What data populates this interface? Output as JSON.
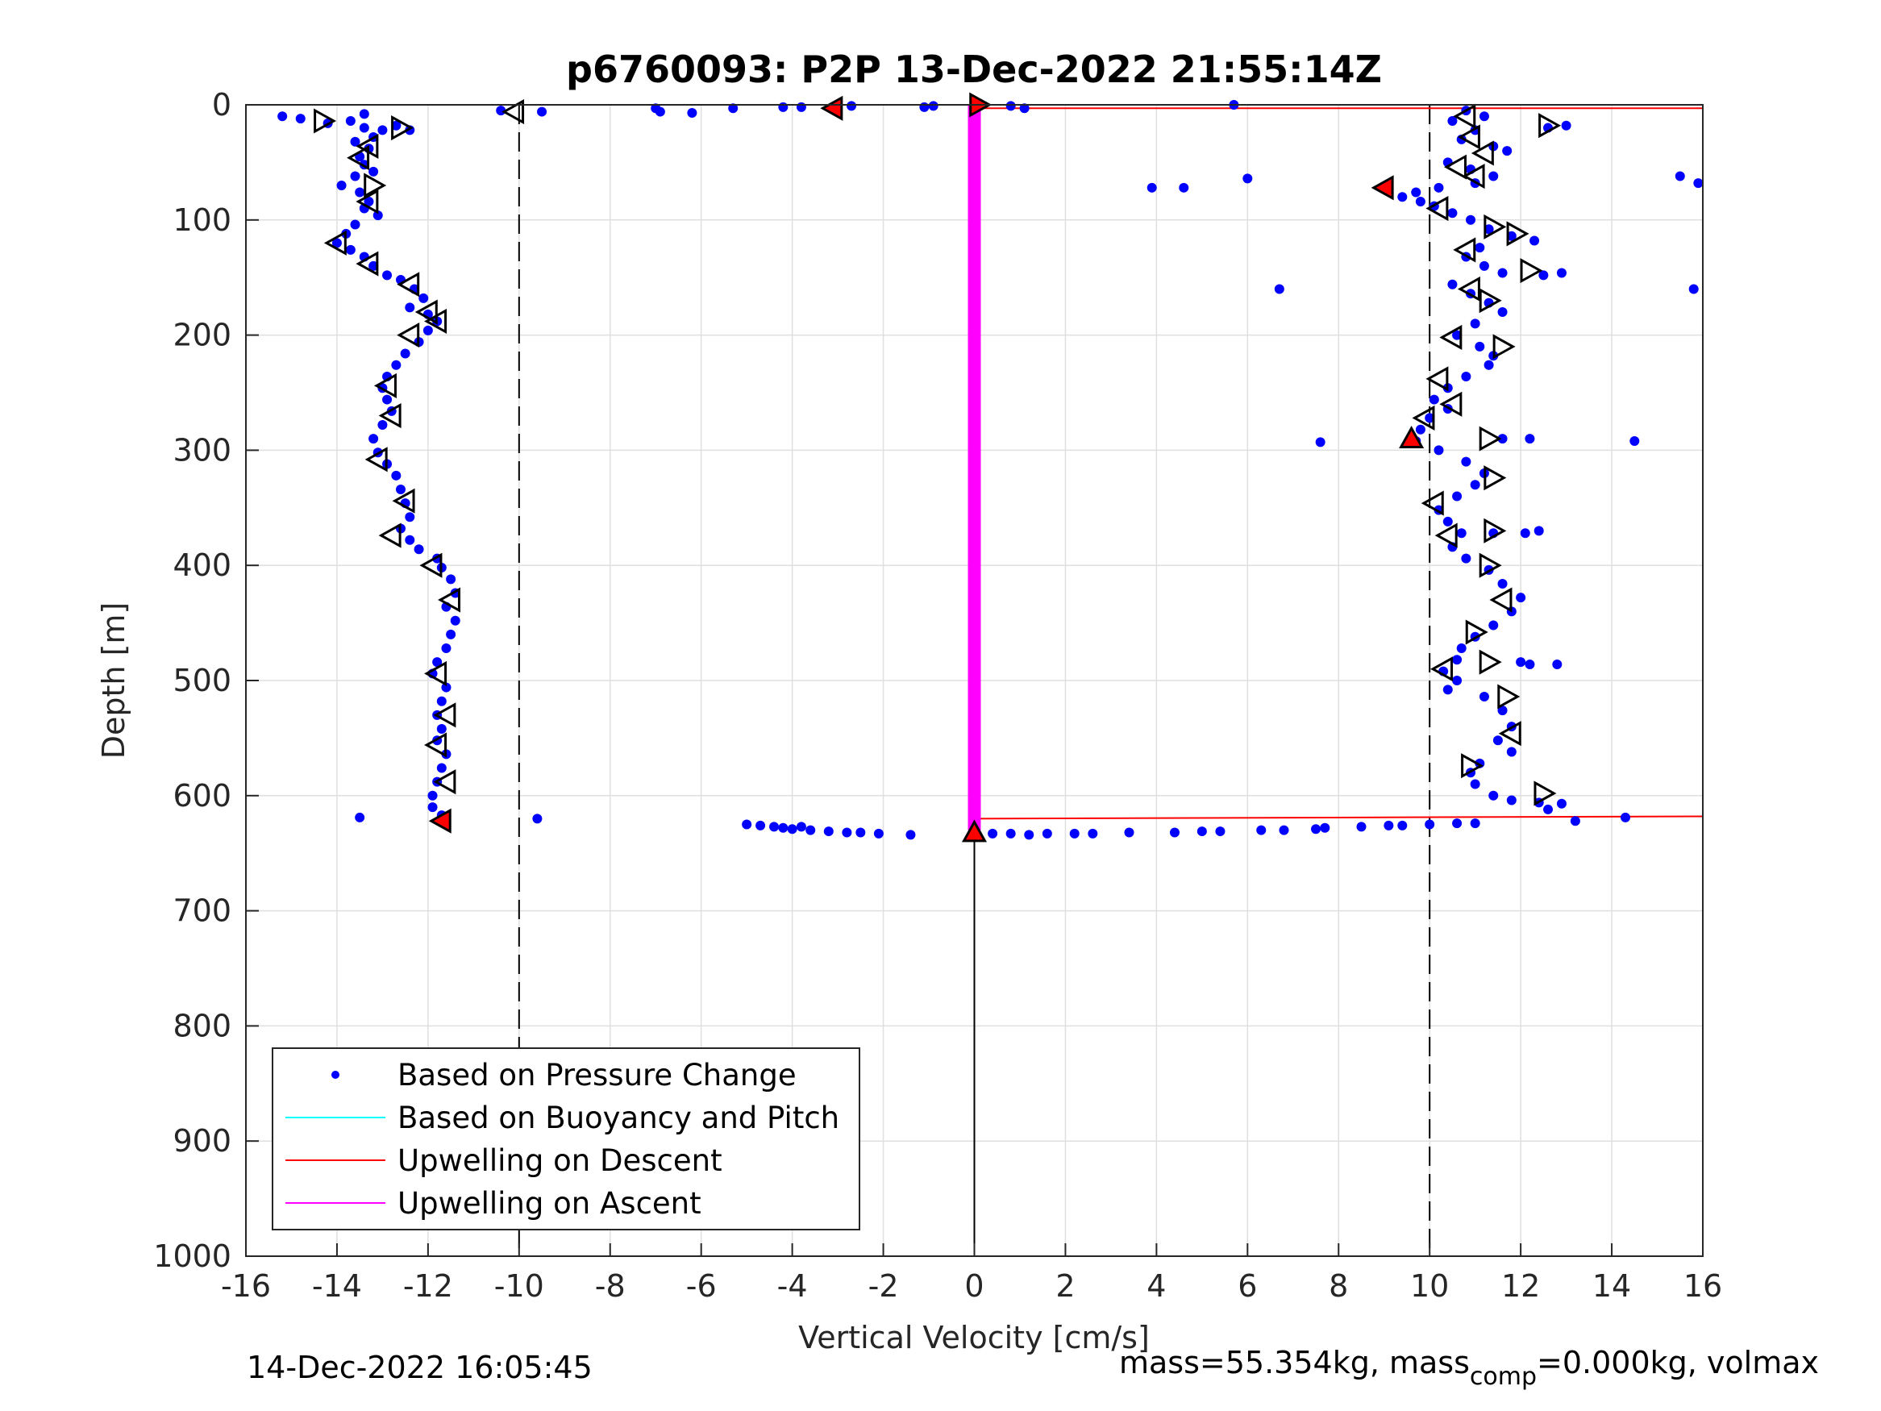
{
  "chart_data": {
    "type": "scatter",
    "title": "p6760093: P2P 13-Dec-2022 21:55:14Z",
    "xlabel": "Vertical Velocity [cm/s]",
    "ylabel": "Depth [m]",
    "xlim": [
      -16,
      16
    ],
    "ylim": [
      0,
      1000
    ],
    "y_reversed": true,
    "grid": true,
    "x_ticks": [
      "-16",
      "-14",
      "-12",
      "-10",
      "-8",
      "-6",
      "-4",
      "-2",
      "0",
      "2",
      "4",
      "6",
      "8",
      "10",
      "12",
      "14",
      "16"
    ],
    "y_ticks": [
      "0",
      "100",
      "200",
      "300",
      "400",
      "500",
      "600",
      "700",
      "800",
      "900",
      "1000"
    ],
    "legend_position": "bottom-left",
    "legend": [
      {
        "label": "Based on Pressure Change",
        "style": "dot",
        "color": "#0000ff"
      },
      {
        "label": "Based on Buoyancy and Pitch",
        "style": "line",
        "color": "#00ffff"
      },
      {
        "label": "Upwelling on Descent",
        "style": "line",
        "color": "#ff0000"
      },
      {
        "label": "Upwelling on Ascent",
        "style": "line",
        "color": "#ff00ff"
      }
    ],
    "reference_lines": {
      "dashed_x": [
        -10,
        10
      ],
      "solid_x": [
        {
          "x": 0,
          "y": [
            630,
            1000
          ]
        }
      ]
    },
    "series": [
      {
        "name": "Based on Pressure Change",
        "kind": "points",
        "color": "#0000ff",
        "points": [
          [
            -15.2,
            10
          ],
          [
            -14.8,
            12
          ],
          [
            -14.2,
            16
          ],
          [
            -13.7,
            14
          ],
          [
            -13.4,
            20
          ],
          [
            -13.2,
            28
          ],
          [
            -13.0,
            22
          ],
          [
            -12.7,
            18
          ],
          [
            -12.4,
            22
          ],
          [
            -13.4,
            8
          ],
          [
            -13.6,
            32
          ],
          [
            -13.3,
            38
          ],
          [
            -13.5,
            45
          ],
          [
            -13.4,
            52
          ],
          [
            -13.2,
            58
          ],
          [
            -13.6,
            62
          ],
          [
            -13.9,
            70
          ],
          [
            -13.5,
            76
          ],
          [
            -13.3,
            84
          ],
          [
            -13.4,
            90
          ],
          [
            -13.1,
            96
          ],
          [
            -13.6,
            104
          ],
          [
            -13.8,
            112
          ],
          [
            -14.0,
            120
          ],
          [
            -13.7,
            126
          ],
          [
            -13.4,
            132
          ],
          [
            -13.2,
            140
          ],
          [
            -12.9,
            148
          ],
          [
            -12.6,
            152
          ],
          [
            -12.3,
            160
          ],
          [
            -12.1,
            168
          ],
          [
            -12.4,
            176
          ],
          [
            -12.0,
            182
          ],
          [
            -11.8,
            188
          ],
          [
            -12.0,
            196
          ],
          [
            -12.2,
            206
          ],
          [
            -12.5,
            216
          ],
          [
            -12.7,
            226
          ],
          [
            -12.9,
            236
          ],
          [
            -13.0,
            246
          ],
          [
            -12.9,
            256
          ],
          [
            -12.8,
            266
          ],
          [
            -13.0,
            278
          ],
          [
            -13.2,
            290
          ],
          [
            -13.1,
            302
          ],
          [
            -12.9,
            312
          ],
          [
            -12.7,
            322
          ],
          [
            -12.6,
            334
          ],
          [
            -12.5,
            346
          ],
          [
            -12.4,
            358
          ],
          [
            -12.6,
            368
          ],
          [
            -12.4,
            378
          ],
          [
            -12.2,
            386
          ],
          [
            -11.8,
            394
          ],
          [
            -11.7,
            402
          ],
          [
            -11.5,
            412
          ],
          [
            -11.4,
            424
          ],
          [
            -11.6,
            436
          ],
          [
            -11.4,
            448
          ],
          [
            -11.5,
            460
          ],
          [
            -11.6,
            472
          ],
          [
            -11.8,
            484
          ],
          [
            -11.9,
            494
          ],
          [
            -11.6,
            506
          ],
          [
            -11.7,
            518
          ],
          [
            -11.8,
            530
          ],
          [
            -11.7,
            542
          ],
          [
            -11.8,
            552
          ],
          [
            -11.6,
            564
          ],
          [
            -11.7,
            576
          ],
          [
            -11.8,
            588
          ],
          [
            -11.9,
            600
          ],
          [
            -11.9,
            610
          ],
          [
            -11.7,
            617
          ],
          [
            -13.5,
            619
          ],
          [
            -9.6,
            620
          ],
          [
            -10.4,
            5
          ],
          [
            -9.5,
            6
          ],
          [
            -7.0,
            3
          ],
          [
            -6.9,
            6
          ],
          [
            -6.2,
            7
          ],
          [
            -5.3,
            3
          ],
          [
            -4.2,
            2
          ],
          [
            -3.8,
            2
          ],
          [
            -2.7,
            1
          ],
          [
            -1.1,
            2
          ],
          [
            -0.9,
            1
          ],
          [
            0.8,
            1
          ],
          [
            1.1,
            3
          ],
          [
            5.7,
            0
          ],
          [
            -5.0,
            625
          ],
          [
            -4.7,
            626
          ],
          [
            -4.4,
            627
          ],
          [
            -4.2,
            628
          ],
          [
            -4.0,
            629
          ],
          [
            -3.8,
            627
          ],
          [
            -3.6,
            630
          ],
          [
            -3.2,
            631
          ],
          [
            -2.8,
            632
          ],
          [
            -2.5,
            632
          ],
          [
            -2.1,
            633
          ],
          [
            -1.4,
            634
          ],
          [
            0.4,
            633
          ],
          [
            0.8,
            633
          ],
          [
            1.2,
            634
          ],
          [
            1.6,
            633
          ],
          [
            2.2,
            633
          ],
          [
            2.6,
            633
          ],
          [
            3.4,
            632
          ],
          [
            4.4,
            632
          ],
          [
            5.0,
            631
          ],
          [
            5.4,
            631
          ],
          [
            6.3,
            630
          ],
          [
            6.8,
            630
          ],
          [
            7.5,
            629
          ],
          [
            7.7,
            628
          ],
          [
            8.5,
            627
          ],
          [
            9.1,
            626
          ],
          [
            9.4,
            626
          ],
          [
            10.0,
            625
          ],
          [
            10.6,
            624
          ],
          [
            11.0,
            624
          ],
          [
            13.2,
            622
          ],
          [
            14.3,
            619
          ],
          [
            10.8,
            5
          ],
          [
            11.2,
            10
          ],
          [
            10.5,
            14
          ],
          [
            11.0,
            22
          ],
          [
            10.7,
            30
          ],
          [
            11.4,
            36
          ],
          [
            11.7,
            40
          ],
          [
            12.6,
            20
          ],
          [
            13.0,
            18
          ],
          [
            10.4,
            50
          ],
          [
            10.9,
            56
          ],
          [
            11.4,
            62
          ],
          [
            11.0,
            68
          ],
          [
            10.2,
            72
          ],
          [
            9.7,
            76
          ],
          [
            9.4,
            80
          ],
          [
            9.8,
            84
          ],
          [
            10.1,
            88
          ],
          [
            10.5,
            94
          ],
          [
            10.9,
            100
          ],
          [
            11.3,
            108
          ],
          [
            11.8,
            114
          ],
          [
            12.3,
            118
          ],
          [
            11.1,
            124
          ],
          [
            10.8,
            132
          ],
          [
            11.2,
            140
          ],
          [
            11.6,
            146
          ],
          [
            12.5,
            148
          ],
          [
            12.9,
            146
          ],
          [
            10.5,
            156
          ],
          [
            10.9,
            164
          ],
          [
            11.3,
            172
          ],
          [
            11.6,
            180
          ],
          [
            11.0,
            190
          ],
          [
            10.6,
            200
          ],
          [
            11.1,
            210
          ],
          [
            11.4,
            218
          ],
          [
            11.3,
            226
          ],
          [
            10.8,
            236
          ],
          [
            10.4,
            246
          ],
          [
            10.1,
            256
          ],
          [
            10.4,
            264
          ],
          [
            10.0,
            272
          ],
          [
            9.8,
            282
          ],
          [
            9.7,
            292
          ],
          [
            11.6,
            290
          ],
          [
            12.2,
            290
          ],
          [
            14.5,
            292
          ],
          [
            7.6,
            293
          ],
          [
            10.2,
            300
          ],
          [
            10.8,
            310
          ],
          [
            11.2,
            320
          ],
          [
            11.0,
            330
          ],
          [
            10.6,
            340
          ],
          [
            10.2,
            352
          ],
          [
            10.4,
            362
          ],
          [
            10.7,
            372
          ],
          [
            11.4,
            372
          ],
          [
            12.1,
            372
          ],
          [
            12.4,
            370
          ],
          [
            10.5,
            384
          ],
          [
            10.8,
            394
          ],
          [
            11.3,
            404
          ],
          [
            11.6,
            416
          ],
          [
            12.0,
            428
          ],
          [
            11.8,
            440
          ],
          [
            11.4,
            452
          ],
          [
            11.0,
            462
          ],
          [
            10.7,
            472
          ],
          [
            10.6,
            482
          ],
          [
            10.3,
            492
          ],
          [
            10.6,
            500
          ],
          [
            10.4,
            508
          ],
          [
            11.2,
            514
          ],
          [
            11.6,
            526
          ],
          [
            11.8,
            540
          ],
          [
            11.5,
            552
          ],
          [
            11.8,
            562
          ],
          [
            11.1,
            572
          ],
          [
            10.9,
            580
          ],
          [
            11.0,
            590
          ],
          [
            11.4,
            600
          ],
          [
            11.8,
            604
          ],
          [
            12.4,
            606
          ],
          [
            12.6,
            612
          ],
          [
            12.9,
            607
          ],
          [
            12.2,
            486
          ],
          [
            12.8,
            486
          ],
          [
            12.0,
            484
          ],
          [
            3.9,
            72
          ],
          [
            4.6,
            72
          ],
          [
            6.0,
            64
          ],
          [
            6.7,
            160
          ],
          [
            15.5,
            62
          ],
          [
            15.9,
            68
          ],
          [
            15.8,
            160
          ]
        ]
      },
      {
        "name": "Upwelling on Descent",
        "kind": "line",
        "color": "#ff0000",
        "points": [
          [
            0,
            3
          ],
          [
            16,
            3
          ],
          [
            0,
            620
          ],
          [
            16,
            618
          ]
        ]
      },
      {
        "name": "Upwelling on Ascent",
        "kind": "line",
        "color": "#ff00ff",
        "points": [
          [
            0,
            0
          ],
          [
            0,
            630
          ]
        ]
      },
      {
        "kind": "markers",
        "marker": "triangle-right",
        "color": "#000000",
        "points": [
          [
            -14.3,
            14
          ],
          [
            -12.6,
            20
          ],
          [
            -13.2,
            70
          ],
          [
            12.6,
            18
          ],
          [
            11.4,
            106
          ],
          [
            11.9,
            112
          ],
          [
            12.2,
            144
          ],
          [
            11.3,
            170
          ],
          [
            11.6,
            210
          ],
          [
            11.3,
            290
          ],
          [
            11.4,
            324
          ],
          [
            11.4,
            370
          ],
          [
            11.3,
            400
          ],
          [
            11.0,
            458
          ],
          [
            11.3,
            484
          ],
          [
            11.7,
            514
          ],
          [
            10.9,
            574
          ],
          [
            12.5,
            598
          ]
        ]
      },
      {
        "kind": "markers",
        "marker": "triangle-left",
        "color": "#000000",
        "points": [
          [
            -10.1,
            6
          ],
          [
            -13.3,
            36
          ],
          [
            -13.5,
            46
          ],
          [
            -13.3,
            84
          ],
          [
            -14.0,
            120
          ],
          [
            -13.3,
            138
          ],
          [
            -12.4,
            156
          ],
          [
            -12.0,
            180
          ],
          [
            -11.8,
            188
          ],
          [
            -12.4,
            200
          ],
          [
            -12.9,
            244
          ],
          [
            -12.8,
            270
          ],
          [
            -13.1,
            308
          ],
          [
            -12.5,
            344
          ],
          [
            -12.8,
            374
          ],
          [
            -11.9,
            400
          ],
          [
            -11.5,
            430
          ],
          [
            -11.8,
            494
          ],
          [
            -11.6,
            530
          ],
          [
            -11.8,
            556
          ],
          [
            -11.6,
            588
          ],
          [
            10.8,
            10
          ],
          [
            10.9,
            28
          ],
          [
            11.2,
            42
          ],
          [
            10.6,
            54
          ],
          [
            11.0,
            62
          ],
          [
            10.2,
            90
          ],
          [
            10.8,
            126
          ],
          [
            10.9,
            160
          ],
          [
            10.5,
            202
          ],
          [
            10.2,
            238
          ],
          [
            10.5,
            260
          ],
          [
            9.9,
            272
          ],
          [
            10.1,
            346
          ],
          [
            10.4,
            374
          ],
          [
            10.3,
            490
          ],
          [
            11.6,
            430
          ],
          [
            11.8,
            546
          ]
        ]
      },
      {
        "kind": "markers",
        "marker": "triangle-left",
        "color": "#ff0000",
        "points": [
          [
            -3.1,
            3
          ],
          [
            9.0,
            72
          ],
          [
            -11.7,
            622
          ]
        ]
      },
      {
        "kind": "markers",
        "marker": "triangle-right",
        "color": "#ff0000",
        "points": [
          [
            0.1,
            0
          ]
        ]
      },
      {
        "kind": "markers",
        "marker": "triangle-up",
        "color": "#ff0000",
        "points": [
          [
            9.6,
            290
          ],
          [
            0.0,
            632
          ]
        ]
      }
    ]
  },
  "footer": {
    "timestamp": "14-Dec-2022 16:05:45",
    "mass_text": "mass=55.354kg, mass",
    "mass_sub": "comp",
    "mass_rest": "=0.000kg, volmax"
  }
}
